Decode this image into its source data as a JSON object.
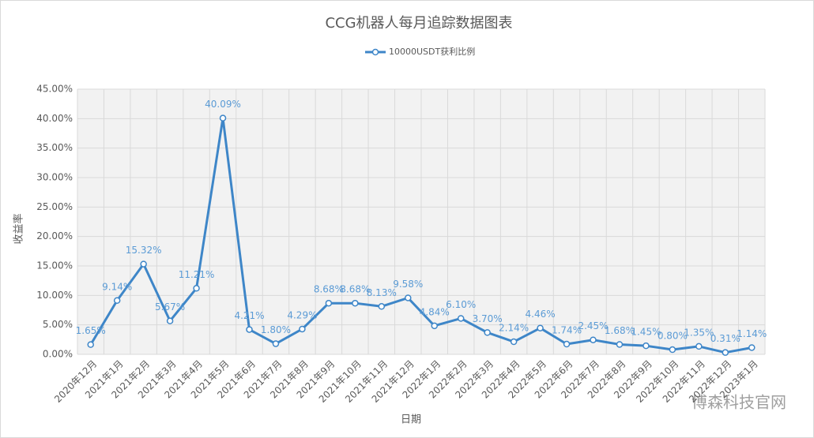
{
  "chart_data": {
    "type": "line",
    "title": "CCG机器人每月追踪数据图表",
    "x_label": "日期",
    "y_label": "收益率",
    "categories": [
      "2020年12月",
      "2021年1月",
      "2021年2月",
      "2021年3月",
      "2021年4月",
      "2021年5月",
      "2021年6月",
      "2021年7月",
      "2021年8月",
      "2021年9月",
      "2021年10月",
      "2021年11月",
      "2021年12月",
      "2022年1月",
      "2022年2月",
      "2022年3月",
      "2022年4月",
      "2022年5月",
      "2022年6月",
      "2022年7月",
      "2022年8月",
      "2022年9月",
      "2022年10月",
      "2022年11月",
      "2022年12月",
      "2023年1月"
    ],
    "series": [
      {
        "name": "10000USDT获利比例",
        "color": "#3e86c8",
        "values": [
          1.65,
          9.14,
          15.32,
          5.67,
          11.21,
          40.09,
          4.21,
          1.8,
          4.29,
          8.68,
          8.68,
          8.13,
          9.58,
          4.84,
          6.1,
          3.7,
          2.14,
          4.46,
          1.74,
          2.45,
          1.68,
          1.45,
          0.8,
          1.35,
          0.31,
          1.14
        ],
        "value_labels": [
          "1.65%",
          "9.14%",
          "15.32%",
          "5.67%",
          "11.21%",
          "40.09%",
          "4.21%",
          "1.80%",
          "4.29%",
          "8.68%",
          "8.68%",
          "8.13%",
          "9.58%",
          "4.84%",
          "6.10%",
          "3.70%",
          "2.14%",
          "4.46%",
          "1.74%",
          "2.45%",
          "1.68%",
          "1.45%",
          "0.80%",
          "1.35%",
          "0.31%",
          "1.14%"
        ]
      }
    ],
    "ylim": [
      0,
      45
    ],
    "yticks": [
      {
        "value": 0,
        "label": "0.00%"
      },
      {
        "value": 5,
        "label": "5.00%"
      },
      {
        "value": 10,
        "label": "10.00%"
      },
      {
        "value": 15,
        "label": "15.00%"
      },
      {
        "value": 20,
        "label": "20.00%"
      },
      {
        "value": 25,
        "label": "25.00%"
      },
      {
        "value": 30,
        "label": "30.00%"
      },
      {
        "value": 35,
        "label": "35.00%"
      },
      {
        "value": 40,
        "label": "40.00%"
      },
      {
        "value": 45,
        "label": "45.00%"
      }
    ],
    "grid": true,
    "legend": "top",
    "watermark": "博森科技官网"
  }
}
